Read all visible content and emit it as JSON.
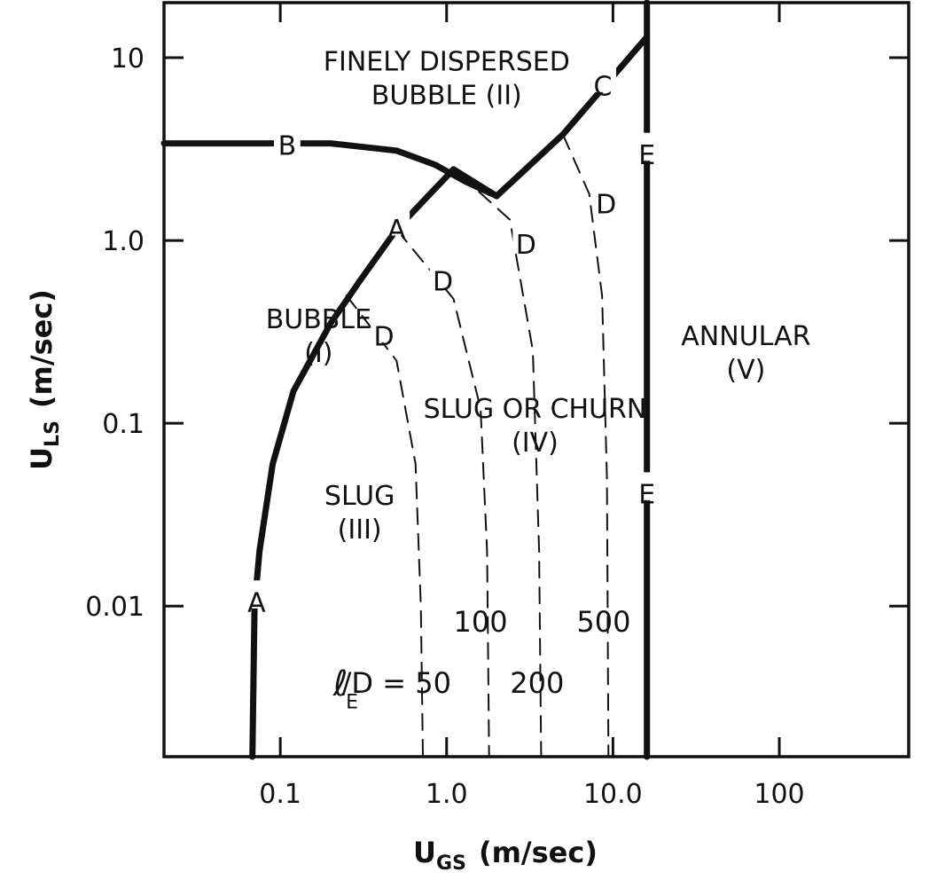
{
  "chart_data": {
    "type": "line",
    "x_scale": "log",
    "y_scale": "log",
    "xlim": [
      0.02,
      600
    ],
    "ylim": [
      0.0015,
      20
    ],
    "grid": false,
    "xlabel_main": "U",
    "xlabel_sub": "GS",
    "xlabel_unit": "(m/sec)",
    "ylabel_main": "U",
    "ylabel_sub": "LS",
    "ylabel_unit": "(m/sec)",
    "x_ticks": [
      {
        "value": 0.1,
        "label": "0.1"
      },
      {
        "value": 1.0,
        "label": "1.0"
      },
      {
        "value": 10.0,
        "label": "10.0"
      },
      {
        "value": 100,
        "label": "100"
      }
    ],
    "y_ticks": [
      {
        "value": 10,
        "label": "10"
      },
      {
        "value": 1.0,
        "label": "1.0"
      },
      {
        "value": 0.1,
        "label": "0.1"
      },
      {
        "value": 0.01,
        "label": "0.01"
      }
    ],
    "boundaries": [
      {
        "name": "B",
        "style": "solid",
        "points": [
          [
            0.02,
            3.4
          ],
          [
            0.2,
            3.4
          ],
          [
            0.5,
            3.1
          ],
          [
            0.85,
            2.6
          ],
          [
            1.3,
            2.1
          ],
          [
            2.0,
            1.75
          ]
        ]
      },
      {
        "name": "C",
        "style": "solid",
        "points": [
          [
            1.1,
            2.45
          ],
          [
            2.0,
            1.75
          ],
          [
            5.0,
            3.8
          ],
          [
            16,
            13
          ]
        ]
      },
      {
        "name": "A",
        "style": "solid",
        "points": [
          [
            0.068,
            0.0015
          ],
          [
            0.07,
            0.01
          ],
          [
            0.075,
            0.02
          ],
          [
            0.09,
            0.06
          ],
          [
            0.12,
            0.15
          ],
          [
            0.2,
            0.35
          ],
          [
            0.3,
            0.6
          ],
          [
            0.5,
            1.15
          ],
          [
            0.75,
            1.7
          ],
          [
            1.1,
            2.45
          ]
        ]
      },
      {
        "name": "E",
        "style": "solid",
        "points": [
          [
            16,
            0.0015
          ],
          [
            16,
            20
          ]
        ]
      },
      {
        "name": "D (lE/D=50)",
        "style": "dashed",
        "points": [
          [
            0.25,
            0.5
          ],
          [
            0.5,
            0.22
          ],
          [
            0.65,
            0.06
          ],
          [
            0.7,
            0.01
          ],
          [
            0.72,
            0.0015
          ]
        ]
      },
      {
        "name": "D (lE/D=100)",
        "style": "dashed",
        "points": [
          [
            0.5,
            1.15
          ],
          [
            1.1,
            0.48
          ],
          [
            1.6,
            0.12
          ],
          [
            1.75,
            0.02
          ],
          [
            1.8,
            0.0015
          ]
        ]
      },
      {
        "name": "D (lE/D=200)",
        "style": "dashed",
        "points": [
          [
            1.2,
            2.3
          ],
          [
            2.4,
            1.3
          ],
          [
            3.3,
            0.25
          ],
          [
            3.6,
            0.02
          ],
          [
            3.7,
            0.0015
          ]
        ]
      },
      {
        "name": "D (lE/D=500)",
        "style": "dashed",
        "points": [
          [
            5.0,
            3.8
          ],
          [
            7.2,
            1.8
          ],
          [
            8.6,
            0.5
          ],
          [
            9.2,
            0.05
          ],
          [
            9.4,
            0.0015
          ]
        ]
      }
    ],
    "line_labels": [
      {
        "text": "A",
        "x": 0.072,
        "y": 0.0105
      },
      {
        "text": "A",
        "x": 0.5,
        "y": 1.15
      },
      {
        "text": "B",
        "x": 0.11,
        "y": 3.3
      },
      {
        "text": "C",
        "x": 8.7,
        "y": 7.0
      },
      {
        "text": "D",
        "x": 0.42,
        "y": 0.3
      },
      {
        "text": "D",
        "x": 0.95,
        "y": 0.6
      },
      {
        "text": "D",
        "x": 3.0,
        "y": 0.95
      },
      {
        "text": "D",
        "x": 9.1,
        "y": 1.58
      },
      {
        "text": "E",
        "x": 16,
        "y": 2.95
      },
      {
        "text": "E",
        "x": 16,
        "y": 0.041
      }
    ],
    "region_labels": [
      {
        "lines": [
          "FINELY DISPERSED",
          "BUBBLE (II)"
        ],
        "x": 1.0,
        "y": 9.5
      },
      {
        "lines": [
          "BUBBLE",
          "(I)"
        ],
        "x": 0.17,
        "y": 0.37
      },
      {
        "lines": [
          "SLUG",
          "(III)"
        ],
        "x": 0.3,
        "y": 0.04
      },
      {
        "lines": [
          "SLUG OR CHURN",
          "(IV)"
        ],
        "x": 3.4,
        "y": 0.12
      },
      {
        "lines": [
          "ANNULAR",
          "(V)"
        ],
        "x": 63,
        "y": 0.3
      }
    ],
    "annotations": [
      {
        "text": "100",
        "x": 1.6,
        "y": 0.0082
      },
      {
        "text": "500",
        "x": 8.8,
        "y": 0.0082
      },
      {
        "text": "200",
        "x": 3.5,
        "y": 0.0038
      },
      {
        "text": "ℓ",
        "x": 0.23,
        "y": 0.0038
      },
      {
        "text": "E",
        "x": 0.27,
        "y": 0.003
      },
      {
        "text": "/D = 50",
        "x": 0.5,
        "y": 0.0038
      }
    ]
  }
}
